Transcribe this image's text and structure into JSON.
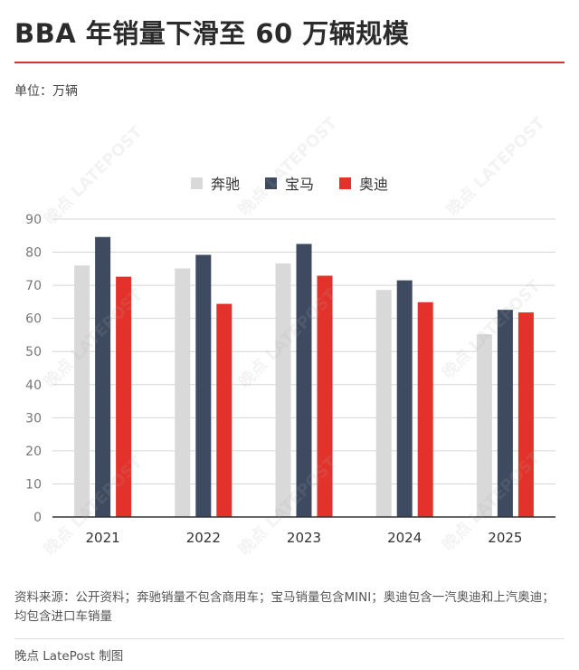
{
  "header": {
    "title": "BBA 年销量下滑至 60 万辆规模",
    "unit": "单位：万辆"
  },
  "watermark": "晚点 LATEPOST",
  "footer": {
    "note": "资料来源：公开资料；奔驰销量不包含商用车；宝马销量包含MINI；奥迪包含一汽奥迪和上汽奥迪；均包含进口车销量",
    "credit": "晚点 LatePost 制图"
  },
  "colors": {
    "accent_rule": "#d2362a",
    "grid": "#d6d6d6"
  },
  "chart_data": {
    "type": "bar",
    "title": "BBA 年销量下滑至 60 万辆规模",
    "ylabel": "单位：万辆",
    "categories": [
      "2021",
      "2022",
      "2023",
      "2024",
      "2025"
    ],
    "series": [
      {
        "name": "奔驰",
        "color": "#d9d9d9",
        "values": [
          76.0,
          75.1,
          76.6,
          68.6,
          55.2
        ]
      },
      {
        "name": "宝马",
        "color": "#3d4a60",
        "values": [
          84.6,
          79.2,
          82.5,
          71.5,
          62.6
        ]
      },
      {
        "name": "奥迪",
        "color": "#e3322b",
        "values": [
          72.6,
          64.4,
          72.9,
          64.9,
          61.8
        ]
      }
    ],
    "ylim": [
      0,
      90
    ],
    "yticks": [
      0,
      10,
      20,
      30,
      40,
      50,
      60,
      70,
      80,
      90
    ],
    "grid": true,
    "legend_position": "top-center"
  }
}
